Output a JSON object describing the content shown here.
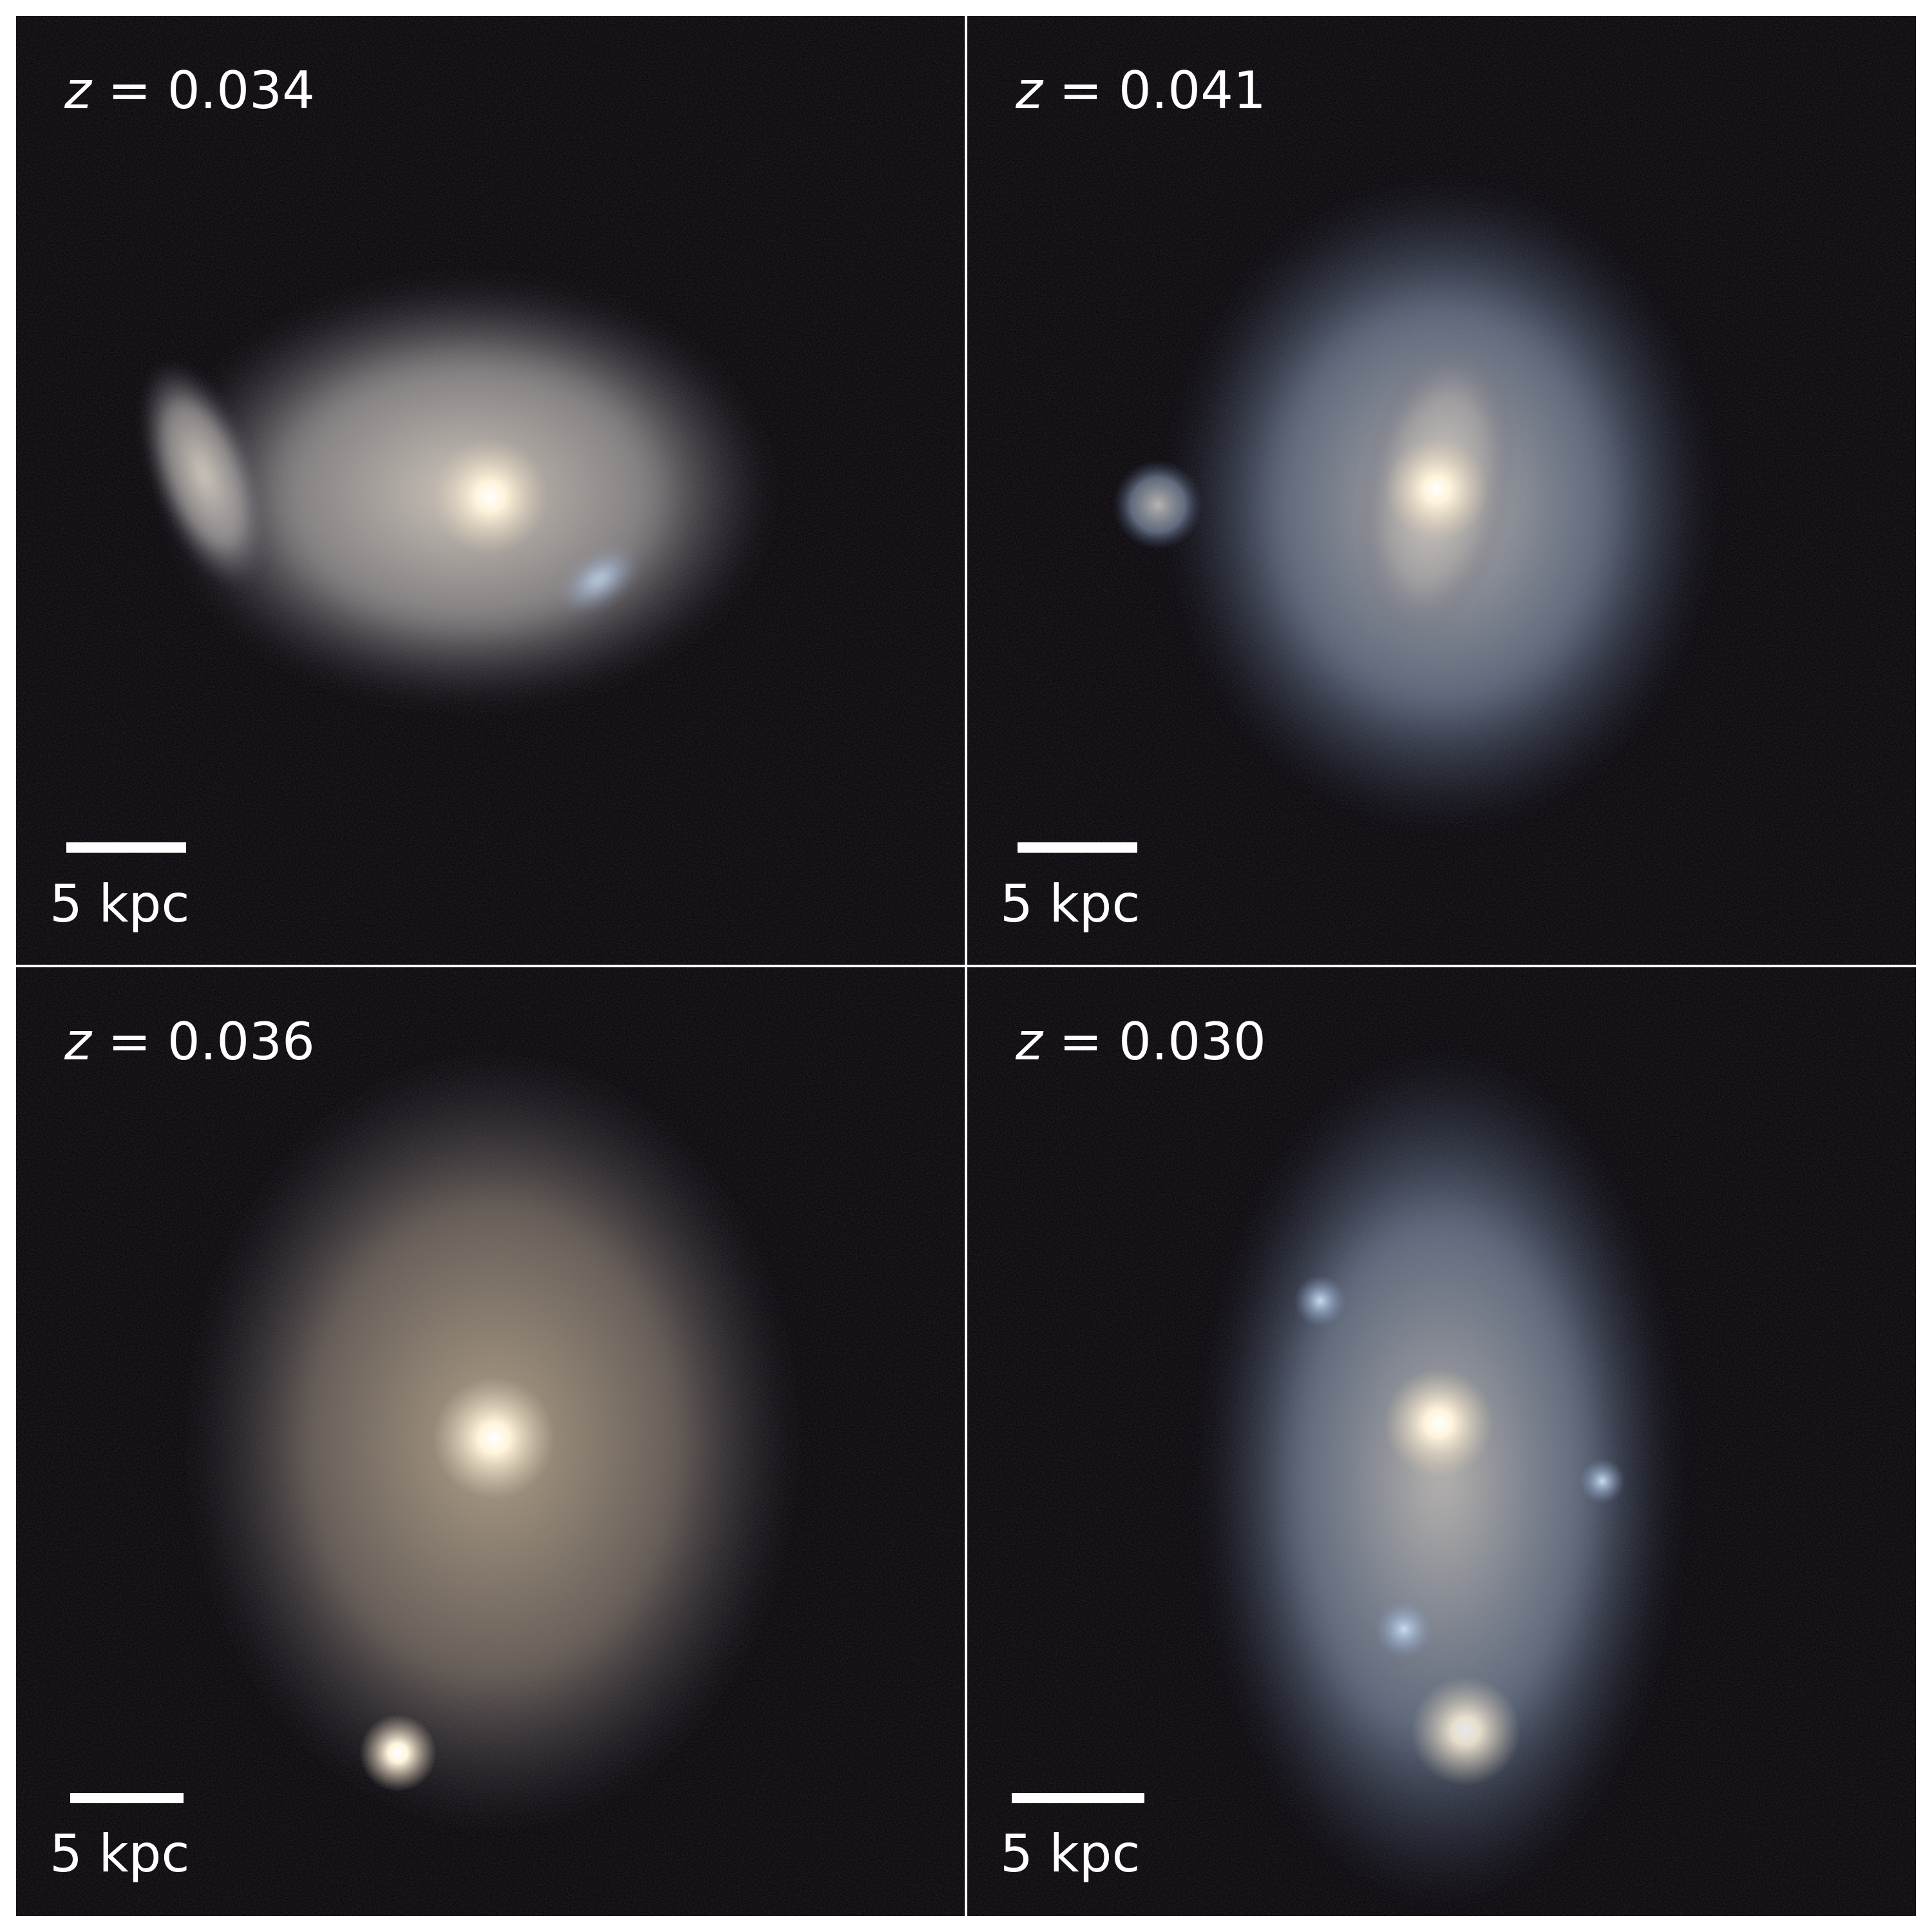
{
  "panels": [
    {
      "redshift_label": "z",
      "redshift_value": "= 0.034",
      "scale_label": "5 kpc"
    },
    {
      "redshift_label": "z",
      "redshift_value": "= 0.041",
      "scale_label": "5 kpc"
    },
    {
      "redshift_label": "z",
      "redshift_value": "= 0.036",
      "scale_label": "5 kpc"
    },
    {
      "redshift_label": "z",
      "redshift_value": "= 0.030",
      "scale_label": "5 kpc"
    }
  ],
  "colors": {
    "background": "#050305",
    "divider": "#ffffff",
    "text": "#ffffff"
  }
}
